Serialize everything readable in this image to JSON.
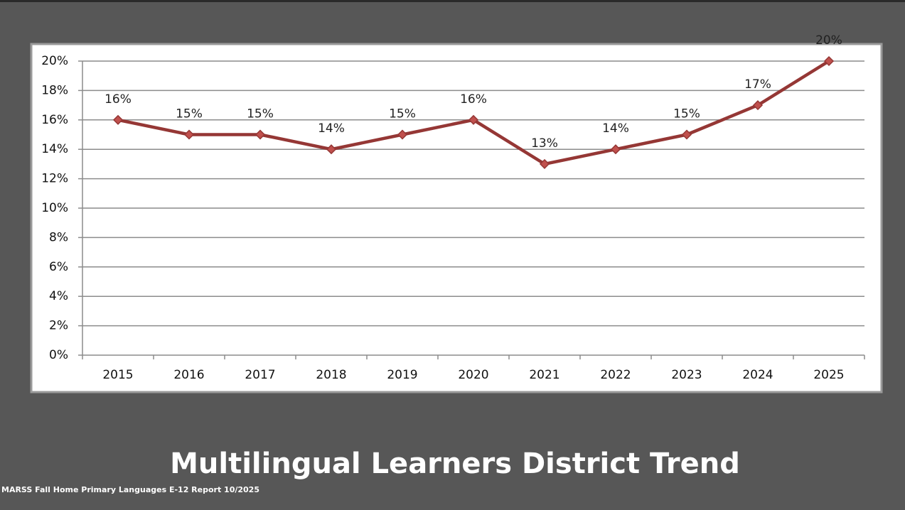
{
  "chart_data": {
    "type": "line",
    "title": "Multilingual Learners District Trend",
    "source": "MARSS Fall Home Primary Languages E-12  Report 10/2025",
    "categories": [
      "2015",
      "2016",
      "2017",
      "2018",
      "2019",
      "2020",
      "2021",
      "2022",
      "2023",
      "2024",
      "2025"
    ],
    "values": [
      16,
      15,
      15,
      14,
      15,
      16,
      13,
      14,
      15,
      17,
      20
    ],
    "value_labels": [
      "16%",
      "15%",
      "15%",
      "14%",
      "15%",
      "16%",
      "13%",
      "14%",
      "15%",
      "17%",
      "20%"
    ],
    "color": "#953735",
    "marker_color": "#c0504d",
    "ylim": [
      0,
      20
    ],
    "yticks": [
      {
        "value": 0,
        "label": "0%"
      },
      {
        "value": 2,
        "label": "2%"
      },
      {
        "value": 4,
        "label": "4%"
      },
      {
        "value": 6,
        "label": "6%"
      },
      {
        "value": 8,
        "label": "8%"
      },
      {
        "value": 10,
        "label": "10%"
      },
      {
        "value": 12,
        "label": "12%"
      },
      {
        "value": 14,
        "label": "14%"
      },
      {
        "value": 16,
        "label": "16%"
      },
      {
        "value": 18,
        "label": "18%"
      },
      {
        "value": 20,
        "label": "20%"
      }
    ],
    "grid": true
  }
}
